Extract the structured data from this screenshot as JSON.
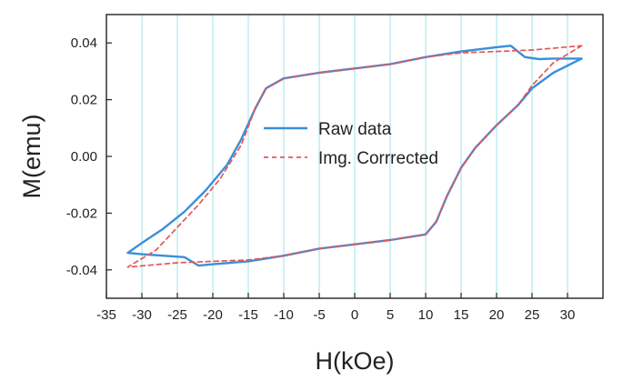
{
  "chart_data": {
    "type": "line",
    "title": "",
    "xlabel": "H(kOe)",
    "ylabel": "M(emu)",
    "xlim": [
      -35,
      35
    ],
    "ylim": [
      -0.05,
      0.05
    ],
    "xticks": [
      -35,
      -30,
      -25,
      -20,
      -15,
      -10,
      -5,
      0,
      5,
      10,
      15,
      20,
      25,
      30
    ],
    "xtick_labels": [
      "-35",
      "-30",
      "-25",
      "-20",
      "-15",
      "-10",
      "-5",
      "0",
      "5",
      "10",
      "15",
      "20",
      "25",
      "30"
    ],
    "yticks": [
      0.04,
      0.02,
      0.0,
      -0.02,
      -0.04
    ],
    "ytick_labels": [
      "0.04",
      "0.02",
      "0.00",
      "-0.02",
      "-0.04"
    ],
    "grid": "vertical",
    "legend_position": "center",
    "series": [
      {
        "name": "Raw data",
        "style": "solid",
        "color": "#3a8fd8",
        "points": [
          [
            32,
            0.0345
          ],
          [
            28,
            0.0295
          ],
          [
            25,
            0.024
          ],
          [
            23,
            0.018
          ],
          [
            20,
            0.011
          ],
          [
            17,
            0.003
          ],
          [
            15,
            -0.004
          ],
          [
            13,
            -0.014
          ],
          [
            11.5,
            -0.023
          ],
          [
            10,
            -0.0275
          ],
          [
            5,
            -0.0295
          ],
          [
            0,
            -0.031
          ],
          [
            -5,
            -0.0325
          ],
          [
            -10,
            -0.035
          ],
          [
            -15,
            -0.037
          ],
          [
            -20,
            -0.038
          ],
          [
            -22,
            -0.0385
          ],
          [
            -23,
            -0.037
          ],
          [
            -24,
            -0.0355
          ],
          [
            -27,
            -0.035
          ],
          [
            -30,
            -0.0345
          ],
          [
            -32,
            -0.034
          ],
          [
            -30,
            -0.0305
          ],
          [
            -27,
            -0.0255
          ],
          [
            -24,
            -0.0195
          ],
          [
            -21,
            -0.012
          ],
          [
            -18,
            -0.003
          ],
          [
            -16,
            0.006
          ],
          [
            -14,
            0.017
          ],
          [
            -12.5,
            0.024
          ],
          [
            -10,
            0.0275
          ],
          [
            -5,
            0.0295
          ],
          [
            0,
            0.031
          ],
          [
            5,
            0.0325
          ],
          [
            10,
            0.035
          ],
          [
            15,
            0.037
          ],
          [
            20,
            0.0385
          ],
          [
            22,
            0.039
          ],
          [
            23,
            0.037
          ],
          [
            24,
            0.035
          ],
          [
            26,
            0.0343
          ],
          [
            28,
            0.0345
          ],
          [
            32,
            0.0345
          ]
        ]
      },
      {
        "name": "Img. Corrrected",
        "style": "dashed",
        "color": "#e8555a",
        "points": [
          [
            32,
            0.039
          ],
          [
            28,
            0.033
          ],
          [
            25,
            0.025
          ],
          [
            23,
            0.018
          ],
          [
            20,
            0.011
          ],
          [
            17,
            0.003
          ],
          [
            15,
            -0.004
          ],
          [
            13,
            -0.014
          ],
          [
            11.5,
            -0.023
          ],
          [
            10,
            -0.0275
          ],
          [
            5,
            -0.0295
          ],
          [
            0,
            -0.031
          ],
          [
            -5,
            -0.0325
          ],
          [
            -10,
            -0.035
          ],
          [
            -15,
            -0.0365
          ],
          [
            -20,
            -0.037
          ],
          [
            -25,
            -0.0375
          ],
          [
            -32,
            -0.039
          ],
          [
            -28,
            -0.033
          ],
          [
            -25,
            -0.025
          ],
          [
            -22,
            -0.017
          ],
          [
            -19,
            -0.008
          ],
          [
            -16,
            0.004
          ],
          [
            -14,
            0.017
          ],
          [
            -12.5,
            0.024
          ],
          [
            -10,
            0.0275
          ],
          [
            -5,
            0.0295
          ],
          [
            0,
            0.031
          ],
          [
            5,
            0.0325
          ],
          [
            10,
            0.035
          ],
          [
            15,
            0.0365
          ],
          [
            20,
            0.037
          ],
          [
            25,
            0.0375
          ],
          [
            32,
            0.039
          ]
        ]
      }
    ]
  }
}
